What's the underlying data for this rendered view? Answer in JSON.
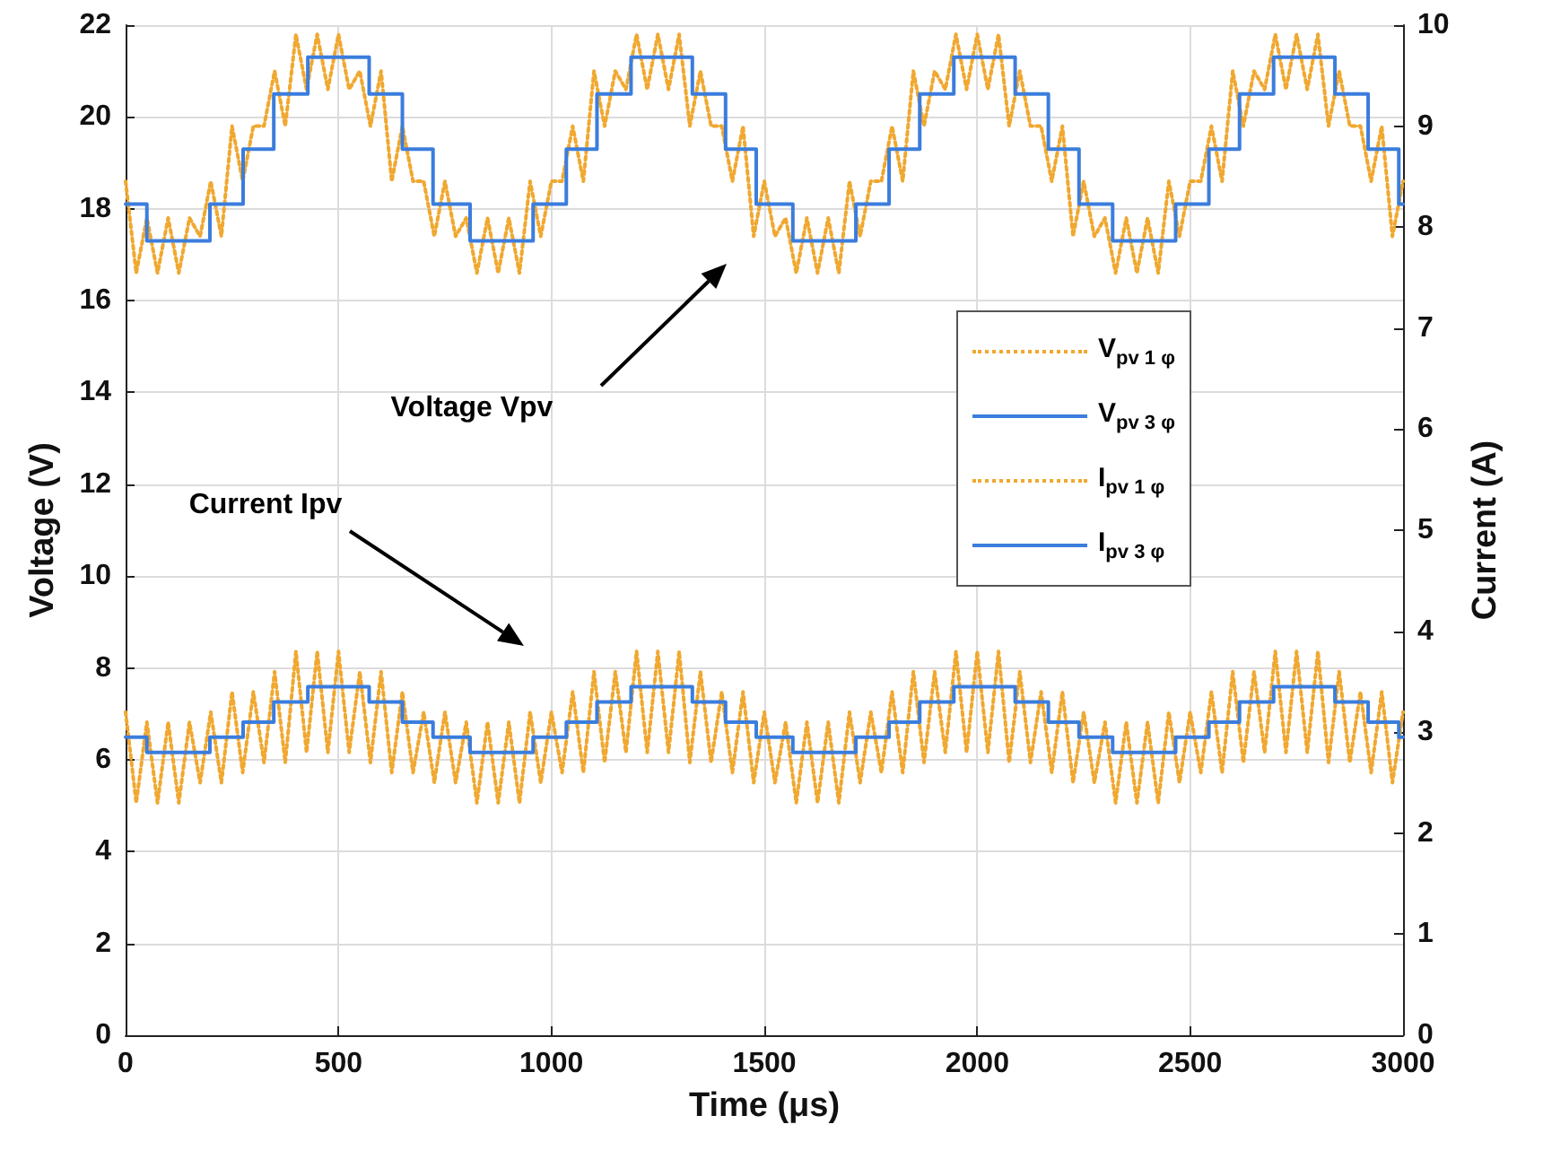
{
  "chart_data": {
    "type": "line",
    "xlabel": "Time (μs)",
    "ylabel": "Voltage (V)",
    "y2label": "Current (A)",
    "xlim": [
      0,
      3000
    ],
    "xticks": [
      0,
      500,
      1000,
      1500,
      2000,
      2500,
      3000
    ],
    "ylim": [
      0,
      22
    ],
    "yticks": [
      0,
      2,
      4,
      6,
      8,
      10,
      12,
      14,
      16,
      18,
      20,
      22
    ],
    "y2lim": [
      0,
      10
    ],
    "y2ticks": [
      0,
      1,
      2,
      3,
      4,
      5,
      6,
      7,
      8,
      9,
      10
    ],
    "grid": true,
    "legend": "right",
    "marker": "none",
    "annotations": [
      "Voltage Vpv",
      "Current Ipv"
    ],
    "series": [
      {
        "name": "V$_{pv 1 φ}$",
        "color": "#f0a830",
        "line_style": "dotted",
        "x": [
          0,
          25,
          50,
          75,
          100,
          125,
          150,
          175,
          200,
          225,
          250,
          275,
          300,
          325,
          350,
          375,
          400,
          425,
          450,
          475,
          500,
          525,
          550,
          575,
          600,
          625,
          650,
          675,
          700,
          725,
          750,
          775,
          800,
          825,
          850,
          875,
          900,
          925,
          950,
          975,
          1000,
          1025,
          1050,
          1075,
          1100,
          1125,
          1150,
          1175,
          1200,
          1225,
          1250,
          1275,
          1300,
          1325,
          1350,
          1375,
          1400,
          1425,
          1450,
          1475,
          1500,
          1525,
          1550,
          1575,
          1600,
          1625,
          1650,
          1675,
          1700,
          1725,
          1750,
          1775,
          1800,
          1825,
          1850,
          1875,
          1900,
          1925,
          1950,
          1975,
          2000,
          2025,
          2050,
          2075,
          2100,
          2125,
          2150,
          2175,
          2200,
          2225,
          2250,
          2275,
          2300,
          2325,
          2350,
          2375,
          2400,
          2425,
          2450,
          2475,
          2500,
          2525,
          2550,
          2575,
          2600,
          2625,
          2650,
          2675,
          2700,
          2725,
          2750,
          2775,
          2800,
          2825,
          2850,
          2875,
          2900,
          2925,
          2950,
          2975,
          3000
        ],
        "values": [
          18.6,
          16.6,
          17.8,
          16.6,
          17.8,
          16.6,
          17.8,
          17.4,
          18.6,
          17.4,
          19.8,
          18.6,
          19.8,
          19.8,
          21.0,
          19.8,
          21.8,
          20.6,
          21.8,
          20.6,
          21.8,
          20.6,
          21.0,
          19.8,
          21.0,
          18.6,
          19.8,
          18.6,
          18.6,
          17.4,
          18.6,
          17.4,
          17.8,
          16.6,
          17.8,
          16.6,
          17.8,
          16.6,
          18.6,
          17.4,
          18.6,
          18.6,
          19.8,
          18.6,
          21.0,
          19.8,
          21.0,
          20.6,
          21.8,
          20.6,
          21.8,
          20.6,
          21.8,
          19.8,
          21.0,
          19.8,
          19.8,
          18.6,
          19.8,
          17.4,
          18.6,
          17.4,
          17.8,
          16.6,
          17.8,
          16.6,
          17.8,
          16.6,
          18.6,
          17.4,
          18.6,
          18.6,
          19.8,
          18.6,
          21.0,
          19.8,
          21.0,
          20.6,
          21.8,
          20.6,
          21.8,
          20.6,
          21.8,
          19.8,
          21.0,
          19.8,
          19.8,
          18.6,
          19.8,
          17.4,
          18.6,
          17.4,
          17.8,
          16.6,
          17.8,
          16.6,
          17.8,
          16.6,
          18.6,
          17.4,
          18.6,
          18.6,
          19.8,
          18.6,
          21.0,
          19.8,
          21.0,
          20.6,
          21.8,
          20.6,
          21.8,
          20.6,
          21.8,
          19.8,
          21.0,
          19.8,
          19.8,
          18.6,
          19.8,
          17.4,
          18.6
        ]
      },
      {
        "name": "V$_{pv 3 φ}$",
        "color": "#3b7ddd",
        "line_style": "solid",
        "x": [
          0,
          50,
          50,
          198,
          198,
          276,
          276,
          348,
          348,
          428,
          428,
          572,
          572,
          650,
          650,
          722,
          722,
          809,
          809,
          957,
          957,
          1035,
          1035,
          1107,
          1107,
          1187,
          1187,
          1331,
          1331,
          1409,
          1409,
          1481,
          1481,
          1567,
          1567,
          1715,
          1715,
          1793,
          1793,
          1865,
          1865,
          1945,
          1945,
          2089,
          2089,
          2167,
          2167,
          2239,
          2239,
          2318,
          2318,
          2466,
          2466,
          2544,
          2544,
          2616,
          2616,
          2696,
          2696,
          2840,
          2840,
          2918,
          2918,
          2990,
          2990,
          3000
        ],
        "values": [
          18.1,
          18.1,
          17.3,
          17.3,
          18.1,
          18.1,
          19.3,
          19.3,
          20.5,
          20.5,
          21.3,
          21.3,
          20.5,
          20.5,
          19.3,
          19.3,
          18.1,
          18.1,
          17.3,
          17.3,
          18.1,
          18.1,
          19.3,
          19.3,
          20.5,
          20.5,
          21.3,
          21.3,
          20.5,
          20.5,
          19.3,
          19.3,
          18.1,
          18.1,
          17.3,
          17.3,
          18.1,
          18.1,
          19.3,
          19.3,
          20.5,
          20.5,
          21.3,
          21.3,
          20.5,
          20.5,
          19.3,
          19.3,
          18.1,
          18.1,
          17.3,
          17.3,
          18.1,
          18.1,
          19.3,
          19.3,
          20.5,
          20.5,
          21.3,
          21.3,
          20.5,
          20.5,
          19.3,
          19.3,
          18.1,
          18.1
        ]
      },
      {
        "name": "I$_{pv 1 φ}$",
        "color": "#f0a830",
        "line_style": "dotted",
        "axis": "y2",
        "x": [
          0,
          25,
          50,
          75,
          100,
          125,
          150,
          175,
          200,
          225,
          250,
          275,
          300,
          325,
          350,
          375,
          400,
          425,
          450,
          475,
          500,
          525,
          550,
          575,
          600,
          625,
          650,
          675,
          700,
          725,
          750,
          775,
          800,
          825,
          850,
          875,
          900,
          925,
          950,
          975,
          1000,
          1025,
          1050,
          1075,
          1100,
          1125,
          1150,
          1175,
          1200,
          1225,
          1250,
          1275,
          1300,
          1325,
          1350,
          1375,
          1400,
          1425,
          1450,
          1475,
          1500,
          1525,
          1550,
          1575,
          1600,
          1625,
          1650,
          1675,
          1700,
          1725,
          1750,
          1775,
          1800,
          1825,
          1850,
          1875,
          1900,
          1925,
          1950,
          1975,
          2000,
          2025,
          2050,
          2075,
          2100,
          2125,
          2150,
          2175,
          2200,
          2225,
          2250,
          2275,
          2300,
          2325,
          2350,
          2375,
          2400,
          2425,
          2450,
          2475,
          2500,
          2525,
          2550,
          2575,
          2600,
          2625,
          2650,
          2675,
          2700,
          2725,
          2750,
          2775,
          2800,
          2825,
          2850,
          2875,
          2900,
          2925,
          2950,
          2975,
          3000
        ],
        "values": [
          3.2,
          2.3,
          3.1,
          2.3,
          3.1,
          2.3,
          3.1,
          2.5,
          3.2,
          2.5,
          3.4,
          2.6,
          3.4,
          2.7,
          3.6,
          2.7,
          3.8,
          2.8,
          3.8,
          2.8,
          3.8,
          2.8,
          3.6,
          2.7,
          3.6,
          2.6,
          3.4,
          2.6,
          3.2,
          2.5,
          3.2,
          2.5,
          3.1,
          2.3,
          3.1,
          2.3,
          3.1,
          2.3,
          3.2,
          2.5,
          3.2,
          2.6,
          3.4,
          2.6,
          3.6,
          2.7,
          3.6,
          2.8,
          3.8,
          2.8,
          3.8,
          2.8,
          3.8,
          2.7,
          3.6,
          2.7,
          3.4,
          2.6,
          3.4,
          2.5,
          3.2,
          2.5,
          3.1,
          2.3,
          3.1,
          2.3,
          3.1,
          2.3,
          3.2,
          2.5,
          3.2,
          2.6,
          3.4,
          2.6,
          3.6,
          2.7,
          3.6,
          2.8,
          3.8,
          2.8,
          3.8,
          2.8,
          3.8,
          2.7,
          3.6,
          2.7,
          3.4,
          2.6,
          3.4,
          2.5,
          3.2,
          2.5,
          3.1,
          2.3,
          3.1,
          2.3,
          3.1,
          2.3,
          3.2,
          2.5,
          3.2,
          2.6,
          3.4,
          2.6,
          3.6,
          2.7,
          3.6,
          2.8,
          3.8,
          2.8,
          3.8,
          2.8,
          3.8,
          2.7,
          3.6,
          2.7,
          3.4,
          2.6,
          3.4,
          2.5,
          3.2
        ]
      },
      {
        "name": "I$_{pv 3 φ}$",
        "color": "#3b7ddd",
        "line_style": "solid",
        "axis": "y2",
        "x": [
          0,
          50,
          50,
          198,
          198,
          276,
          276,
          348,
          348,
          428,
          428,
          572,
          572,
          650,
          650,
          722,
          722,
          809,
          809,
          957,
          957,
          1035,
          1035,
          1107,
          1107,
          1187,
          1187,
          1331,
          1331,
          1409,
          1409,
          1481,
          1481,
          1567,
          1567,
          1715,
          1715,
          1793,
          1793,
          1865,
          1865,
          1945,
          1945,
          2089,
          2089,
          2167,
          2167,
          2239,
          2239,
          2318,
          2318,
          2466,
          2466,
          2544,
          2544,
          2616,
          2616,
          2696,
          2696,
          2840,
          2840,
          2918,
          2918,
          2990,
          2990,
          3000
        ],
        "values": [
          2.95,
          2.95,
          2.8,
          2.8,
          2.95,
          2.95,
          3.1,
          3.1,
          3.3,
          3.3,
          3.45,
          3.45,
          3.3,
          3.3,
          3.1,
          3.1,
          2.95,
          2.95,
          2.8,
          2.8,
          2.95,
          2.95,
          3.1,
          3.1,
          3.3,
          3.3,
          3.45,
          3.45,
          3.3,
          3.3,
          3.1,
          3.1,
          2.95,
          2.95,
          2.8,
          2.8,
          2.95,
          2.95,
          3.1,
          3.1,
          3.3,
          3.3,
          3.45,
          3.45,
          3.3,
          3.3,
          3.1,
          3.1,
          2.95,
          2.95,
          2.8,
          2.8,
          2.95,
          2.95,
          3.1,
          3.1,
          3.3,
          3.3,
          3.45,
          3.45,
          3.3,
          3.3,
          3.1,
          3.1,
          2.95,
          2.95
        ]
      }
    ]
  }
}
